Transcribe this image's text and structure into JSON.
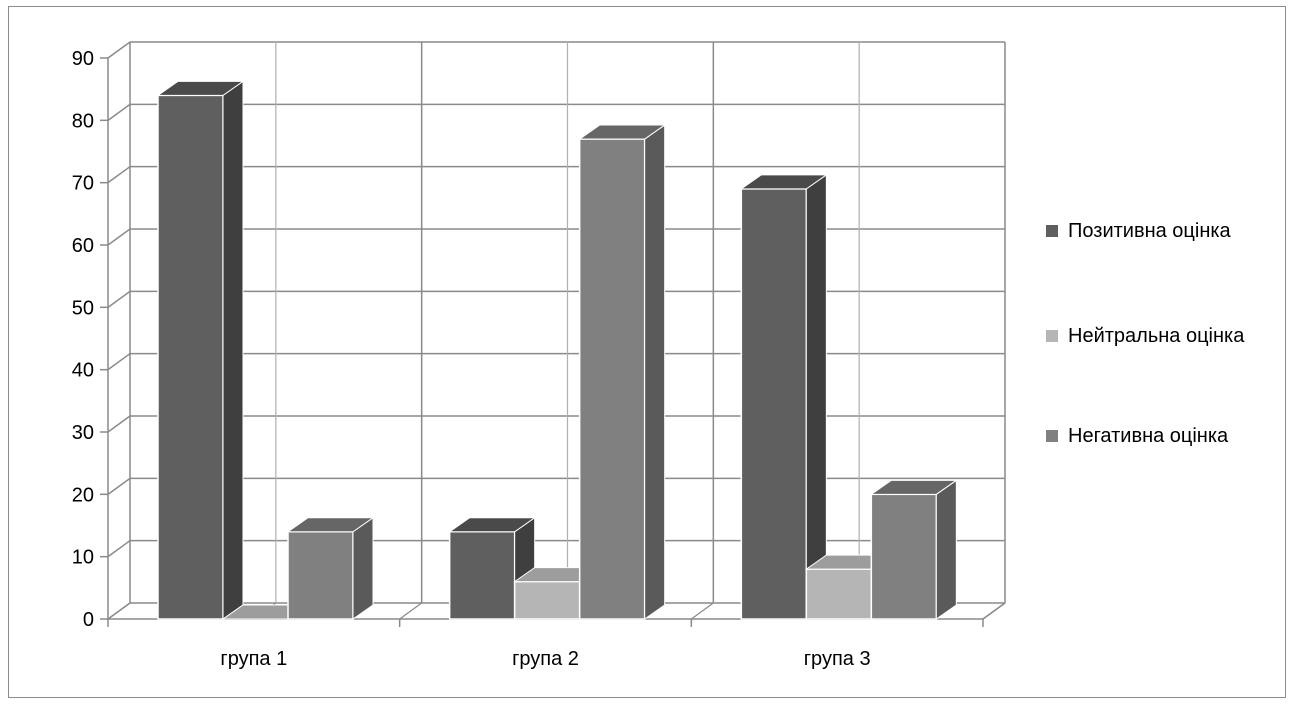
{
  "chart_data": {
    "type": "bar",
    "categories": [
      "група 1",
      "група 2",
      "група 3"
    ],
    "series": [
      {
        "name": "Позитивна оцінка",
        "values": [
          84,
          14,
          69
        ],
        "color": "#5f5f5f",
        "side": "#3f3f3f",
        "top": "#4a4a4a"
      },
      {
        "name": "Нейтральна оцінка",
        "values": [
          0,
          6,
          8
        ],
        "color": "#b5b5b5",
        "side": "#8f8f8f",
        "top": "#9d9d9d"
      },
      {
        "name": "Негативна оцінка",
        "values": [
          14,
          77,
          20
        ],
        "color": "#808080",
        "side": "#5a5a5a",
        "top": "#666666"
      }
    ],
    "yticks": [
      "0",
      "10",
      "20",
      "30",
      "40",
      "50",
      "60",
      "70",
      "80",
      "90"
    ],
    "ylim": [
      0,
      90
    ],
    "grid": true,
    "legend_position": "right",
    "title": "",
    "xlabel": "",
    "ylabel": ""
  }
}
